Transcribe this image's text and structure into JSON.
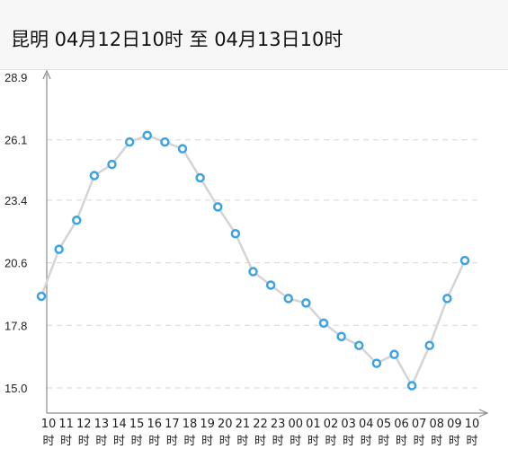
{
  "header": {
    "title": "昆明 04月12日10时 至 04月13日10时"
  },
  "colors": {
    "line": "#d4d4d4",
    "marker_stroke": "#3ba3e3",
    "marker_fill": "#ffffff",
    "grid": "#d6d6d6",
    "axis": "#8c8c8c"
  },
  "chart_data": {
    "type": "line",
    "title": "",
    "xlabel": "",
    "ylabel": "",
    "categories": [
      [
        "10",
        "时"
      ],
      [
        "11",
        "时"
      ],
      [
        "12",
        "时"
      ],
      [
        "13",
        "时"
      ],
      [
        "14",
        "时"
      ],
      [
        "15",
        "时"
      ],
      [
        "16",
        "时"
      ],
      [
        "17",
        "时"
      ],
      [
        "18",
        "时"
      ],
      [
        "19",
        "时"
      ],
      [
        "20",
        "时"
      ],
      [
        "21",
        "时"
      ],
      [
        "22",
        "时"
      ],
      [
        "23",
        "时"
      ],
      [
        "00",
        "时"
      ],
      [
        "01",
        "时"
      ],
      [
        "02",
        "时"
      ],
      [
        "03",
        "时"
      ],
      [
        "04",
        "时"
      ],
      [
        "05",
        "时"
      ],
      [
        "06",
        "时"
      ],
      [
        "07",
        "时"
      ],
      [
        "08",
        "时"
      ],
      [
        "09",
        "时"
      ],
      [
        "10",
        "时"
      ]
    ],
    "values": [
      19.1,
      21.2,
      22.5,
      24.5,
      25.0,
      26.0,
      26.3,
      26.0,
      25.7,
      24.4,
      23.1,
      21.9,
      20.2,
      19.6,
      19.0,
      18.8,
      17.9,
      17.3,
      16.9,
      16.1,
      16.5,
      15.1,
      16.9,
      19.0,
      20.7
    ],
    "y_ticks": [
      "28.9",
      "26.1",
      "23.4",
      "20.6",
      "17.8",
      "15.0"
    ],
    "ylim": [
      15.0,
      28.9
    ],
    "grid": "horizontal-dashed",
    "legend": "none"
  }
}
